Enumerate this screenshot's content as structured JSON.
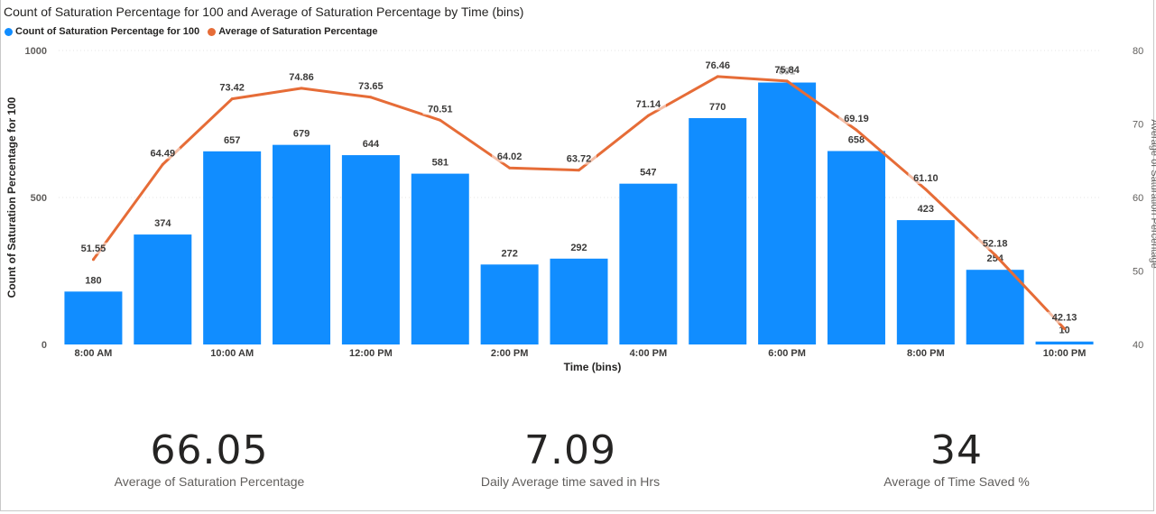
{
  "chart": {
    "title": "Count of Saturation Percentage for 100 and Average of Saturation Percentage by Time (bins)",
    "legend": [
      {
        "label": "Count of Saturation Percentage  for 100",
        "color": "#118dff"
      },
      {
        "label": "Average of Saturation Percentage",
        "color": "#e66c37"
      }
    ]
  },
  "chart_data": {
    "type": "bar",
    "title": "Count of Saturation Percentage for 100 and Average of Saturation Percentage by Time (bins)",
    "xlabel": "Time (bins)",
    "ylabel": "Count of Saturation Percentage for 100",
    "y2label": "Average of Saturation Percentage",
    "categories": [
      "8:00 AM",
      "9:00 AM",
      "10:00 AM",
      "11:00 AM",
      "12:00 PM",
      "1:00 PM",
      "2:00 PM",
      "3:00 PM",
      "4:00 PM",
      "5:00 PM",
      "6:00 PM",
      "7:00 PM",
      "8:00 PM",
      "9:00 PM",
      "10:00 PM"
    ],
    "x_tick_labels": [
      "8:00 AM",
      "",
      "10:00 AM",
      "",
      "12:00 PM",
      "",
      "2:00 PM",
      "",
      "4:00 PM",
      "",
      "6:00 PM",
      "",
      "8:00 PM",
      "",
      "10:00 PM"
    ],
    "ylim": [
      0,
      1000
    ],
    "y_ticks": [
      0,
      500,
      1000
    ],
    "y2lim": [
      40,
      80
    ],
    "y2_ticks": [
      40,
      50,
      60,
      70,
      80
    ],
    "series": [
      {
        "name": "Count of Saturation Percentage  for 100",
        "type": "bar",
        "color": "#118dff",
        "values": [
          180,
          374,
          657,
          679,
          644,
          581,
          272,
          292,
          547,
          770,
          891,
          658,
          423,
          254,
          10
        ]
      },
      {
        "name": "Average of Saturation Percentage",
        "type": "line",
        "color": "#e66c37",
        "axis": "secondary",
        "values": [
          51.55,
          64.49,
          73.42,
          74.86,
          73.65,
          70.51,
          64.02,
          63.72,
          71.14,
          76.46,
          75.84,
          69.19,
          61.1,
          52.18,
          42.13
        ],
        "labels": [
          "51.55",
          "64.49",
          "73.42",
          "74.86",
          "73.65",
          "70.51",
          "64.02",
          "63.72",
          "71.14",
          "76.46",
          "75.84",
          "69.19",
          "61.10",
          "52.18",
          "42.13"
        ]
      }
    ],
    "grid": true,
    "legend_position": "top-left"
  },
  "kpis": [
    {
      "value": "66.05",
      "label": "Average of Saturation Percentage"
    },
    {
      "value": "7.09",
      "label": "Daily Average time saved in Hrs"
    },
    {
      "value": "34",
      "label": "Average of Time Saved %"
    }
  ]
}
